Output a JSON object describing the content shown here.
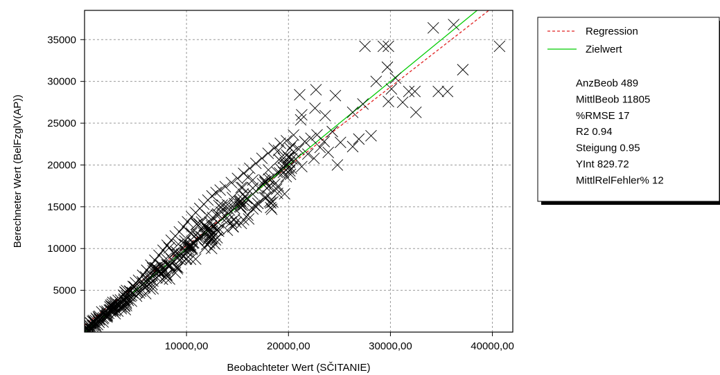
{
  "chart_data": {
    "type": "scatter",
    "title": "",
    "xlabel": "Beobachteter Wert (SČITANIE)",
    "ylabel": "Berechneter Wert (BelFzglV(AP))",
    "xlim": [
      0,
      42000
    ],
    "ylim": [
      0,
      38500
    ],
    "x_ticks": [
      10000,
      20000,
      30000,
      40000
    ],
    "x_tick_labels": [
      "10000,00",
      "20000,00",
      "30000,00",
      "40000,00"
    ],
    "y_ticks": [
      5000,
      10000,
      15000,
      20000,
      25000,
      30000,
      35000
    ],
    "y_tick_labels": [
      "5000",
      "10000",
      "15000",
      "20000",
      "25000",
      "30000",
      "35000"
    ],
    "grid": true,
    "legend_position": "right",
    "colors": {
      "regression": "#e02020",
      "target": "#00cc00",
      "points": "#000000",
      "grid": "#999999"
    },
    "lines": [
      {
        "name": "Regression",
        "style": "dashed",
        "color": "#e02020",
        "slope": 0.95,
        "intercept": 829.72
      },
      {
        "name": "Zielwert",
        "style": "solid",
        "color": "#00cc00",
        "slope": 1.0,
        "intercept": 0
      }
    ],
    "stats": [
      "AnzBeob 489",
      "MittlBeob 11805",
      "%RMSE 17",
      "R2 0.94",
      "Steigung 0.95",
      "YInt 829.72",
      "MittlRelFehler% 12"
    ],
    "outliers": [
      {
        "x": 29300,
        "y": 34200
      },
      {
        "x": 27500,
        "y": 34200
      },
      {
        "x": 29800,
        "y": 34200
      },
      {
        "x": 40700,
        "y": 34200
      },
      {
        "x": 34200,
        "y": 36400
      },
      {
        "x": 36200,
        "y": 36800
      },
      {
        "x": 37100,
        "y": 31400
      },
      {
        "x": 29700,
        "y": 31700
      },
      {
        "x": 30500,
        "y": 30400
      },
      {
        "x": 28600,
        "y": 30000
      },
      {
        "x": 30100,
        "y": 29100
      },
      {
        "x": 31800,
        "y": 28800
      },
      {
        "x": 32400,
        "y": 28800
      },
      {
        "x": 34700,
        "y": 28800
      },
      {
        "x": 35600,
        "y": 28800
      },
      {
        "x": 31200,
        "y": 27500
      },
      {
        "x": 32500,
        "y": 26300
      },
      {
        "x": 29800,
        "y": 27600
      },
      {
        "x": 27300,
        "y": 27300
      },
      {
        "x": 26300,
        "y": 26300
      },
      {
        "x": 28100,
        "y": 23500
      },
      {
        "x": 26900,
        "y": 23100
      },
      {
        "x": 21100,
        "y": 28400
      },
      {
        "x": 22700,
        "y": 29000
      },
      {
        "x": 24600,
        "y": 28300
      },
      {
        "x": 21300,
        "y": 26000
      },
      {
        "x": 21200,
        "y": 25400
      },
      {
        "x": 23600,
        "y": 25900
      },
      {
        "x": 22600,
        "y": 26800
      },
      {
        "x": 24300,
        "y": 24000
      },
      {
        "x": 25100,
        "y": 22700
      },
      {
        "x": 24800,
        "y": 20000
      },
      {
        "x": 26300,
        "y": 22200
      }
    ],
    "cluster_points": [
      {
        "x": 500,
        "y": 800
      },
      {
        "x": 1000,
        "y": 1200
      },
      {
        "x": 1500,
        "y": 1600
      },
      {
        "x": 2000,
        "y": 2500
      },
      {
        "x": 2200,
        "y": 1800
      },
      {
        "x": 2800,
        "y": 3000
      },
      {
        "x": 3000,
        "y": 2200
      },
      {
        "x": 3300,
        "y": 3800
      },
      {
        "x": 3600,
        "y": 2800
      },
      {
        "x": 3900,
        "y": 4300
      },
      {
        "x": 4100,
        "y": 3400
      },
      {
        "x": 4400,
        "y": 4900
      },
      {
        "x": 4600,
        "y": 3700
      },
      {
        "x": 4900,
        "y": 5400
      },
      {
        "x": 5100,
        "y": 4300
      },
      {
        "x": 5300,
        "y": 6200
      },
      {
        "x": 5500,
        "y": 4900
      },
      {
        "x": 5700,
        "y": 6800
      },
      {
        "x": 5900,
        "y": 5300
      },
      {
        "x": 6100,
        "y": 7400
      },
      {
        "x": 6300,
        "y": 5700
      },
      {
        "x": 6500,
        "y": 8000
      },
      {
        "x": 6700,
        "y": 6100
      },
      {
        "x": 6900,
        "y": 8600
      },
      {
        "x": 7100,
        "y": 6500
      },
      {
        "x": 7300,
        "y": 9200
      },
      {
        "x": 7500,
        "y": 7000
      },
      {
        "x": 7700,
        "y": 9800
      },
      {
        "x": 7900,
        "y": 7400
      },
      {
        "x": 8100,
        "y": 10400
      },
      {
        "x": 8300,
        "y": 8000
      },
      {
        "x": 8500,
        "y": 11000
      },
      {
        "x": 8700,
        "y": 8500
      },
      {
        "x": 8900,
        "y": 11500
      },
      {
        "x": 9100,
        "y": 9000
      },
      {
        "x": 9300,
        "y": 12000
      },
      {
        "x": 9500,
        "y": 9300
      },
      {
        "x": 9700,
        "y": 12600
      },
      {
        "x": 9900,
        "y": 9800
      },
      {
        "x": 10100,
        "y": 13200
      },
      {
        "x": 10300,
        "y": 10200
      },
      {
        "x": 10500,
        "y": 13800
      },
      {
        "x": 10700,
        "y": 10700
      },
      {
        "x": 10900,
        "y": 14300
      },
      {
        "x": 11100,
        "y": 11000
      },
      {
        "x": 11300,
        "y": 14800
      },
      {
        "x": 11500,
        "y": 11400
      },
      {
        "x": 11700,
        "y": 15300
      },
      {
        "x": 11900,
        "y": 11800
      },
      {
        "x": 12100,
        "y": 15800
      },
      {
        "x": 12300,
        "y": 12300
      },
      {
        "x": 12500,
        "y": 16300
      },
      {
        "x": 12700,
        "y": 12700
      },
      {
        "x": 12900,
        "y": 16700
      },
      {
        "x": 13100,
        "y": 13100
      },
      {
        "x": 13300,
        "y": 17000
      },
      {
        "x": 13500,
        "y": 13600
      },
      {
        "x": 13800,
        "y": 17400
      },
      {
        "x": 14100,
        "y": 14200
      },
      {
        "x": 14400,
        "y": 17900
      },
      {
        "x": 14700,
        "y": 14800
      },
      {
        "x": 15000,
        "y": 18400
      },
      {
        "x": 15300,
        "y": 15300
      },
      {
        "x": 15600,
        "y": 19000
      },
      {
        "x": 15900,
        "y": 16000
      },
      {
        "x": 16200,
        "y": 19600
      },
      {
        "x": 16500,
        "y": 16500
      },
      {
        "x": 16800,
        "y": 20200
      },
      {
        "x": 17100,
        "y": 17200
      },
      {
        "x": 17400,
        "y": 20800
      },
      {
        "x": 17700,
        "y": 17900
      },
      {
        "x": 18000,
        "y": 21400
      },
      {
        "x": 18300,
        "y": 18400
      },
      {
        "x": 18600,
        "y": 22000
      },
      {
        "x": 18900,
        "y": 19100
      },
      {
        "x": 19200,
        "y": 22600
      },
      {
        "x": 19500,
        "y": 19700
      },
      {
        "x": 19800,
        "y": 22900
      },
      {
        "x": 20100,
        "y": 20300
      },
      {
        "x": 20400,
        "y": 22400
      },
      {
        "x": 20700,
        "y": 20700
      },
      {
        "x": 21000,
        "y": 21900
      },
      {
        "x": 21300,
        "y": 19800
      },
      {
        "x": 21600,
        "y": 22800
      },
      {
        "x": 21900,
        "y": 21300
      },
      {
        "x": 22200,
        "y": 23200
      },
      {
        "x": 22500,
        "y": 20800
      },
      {
        "x": 22800,
        "y": 23600
      },
      {
        "x": 23100,
        "y": 22100
      },
      {
        "x": 23500,
        "y": 22800
      },
      {
        "x": 23900,
        "y": 21500
      },
      {
        "x": 16000,
        "y": 14000
      },
      {
        "x": 17000,
        "y": 15400
      },
      {
        "x": 18000,
        "y": 16300
      },
      {
        "x": 19000,
        "y": 17500
      },
      {
        "x": 14000,
        "y": 12200
      },
      {
        "x": 13000,
        "y": 11300
      },
      {
        "x": 12000,
        "y": 10500
      },
      {
        "x": 10000,
        "y": 8800
      },
      {
        "x": 9000,
        "y": 7800
      },
      {
        "x": 8000,
        "y": 6800
      },
      {
        "x": 6000,
        "y": 4600
      },
      {
        "x": 4000,
        "y": 2700
      },
      {
        "x": 19500,
        "y": 20800
      },
      {
        "x": 20500,
        "y": 21600
      },
      {
        "x": 15500,
        "y": 17300
      },
      {
        "x": 16500,
        "y": 18200
      },
      {
        "x": 12000,
        "y": 14000
      },
      {
        "x": 11000,
        "y": 12900
      },
      {
        "x": 10500,
        "y": 11800
      },
      {
        "x": 13500,
        "y": 15200
      },
      {
        "x": 14500,
        "y": 16100
      },
      {
        "x": 7000,
        "y": 7700
      },
      {
        "x": 6000,
        "y": 6600
      },
      {
        "x": 5000,
        "y": 5900
      },
      {
        "x": 8000,
        "y": 8800
      }
    ]
  }
}
